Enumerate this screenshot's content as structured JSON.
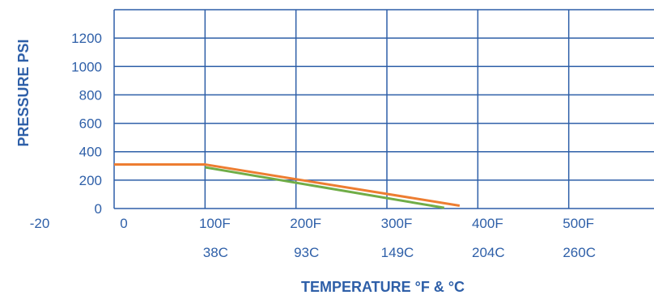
{
  "chart_data": {
    "type": "line",
    "title": "",
    "xlabel": "TEMPERATURE °F & °C",
    "ylabel": "PRESSURE PSI",
    "xlim": [
      -20,
      600
    ],
    "ylim": [
      0,
      1400
    ],
    "x_ticks_f": [
      {
        "value": -20,
        "label": "-20"
      },
      {
        "value": 0,
        "label": "0"
      },
      {
        "value": 100,
        "label": "100F"
      },
      {
        "value": 200,
        "label": "200F"
      },
      {
        "value": 300,
        "label": "300F"
      },
      {
        "value": 400,
        "label": "400F"
      },
      {
        "value": 500,
        "label": "500F"
      }
    ],
    "x_ticks_c": [
      {
        "value": 100,
        "label": "38C"
      },
      {
        "value": 200,
        "label": "93C"
      },
      {
        "value": 300,
        "label": "149C"
      },
      {
        "value": 400,
        "label": "204C"
      },
      {
        "value": 500,
        "label": "260C"
      }
    ],
    "y_ticks": [
      {
        "value": 0,
        "label": "0"
      },
      {
        "value": 200,
        "label": "200"
      },
      {
        "value": 400,
        "label": "400"
      },
      {
        "value": 600,
        "label": "600"
      },
      {
        "value": 800,
        "label": "800"
      },
      {
        "value": 1000,
        "label": "1000"
      },
      {
        "value": 1200,
        "label": "1200"
      }
    ],
    "x_gridlines": [
      0,
      100,
      200,
      300,
      400,
      500,
      600
    ],
    "y_gridlines": [
      0,
      200,
      400,
      600,
      800,
      1000,
      1200,
      1400
    ],
    "grid": true,
    "series": [
      {
        "color": "#ed7d31",
        "x": [
          -20,
          100,
          380
        ],
        "y": [
          310,
          310,
          20
        ]
      },
      {
        "color": "#70ad47",
        "x": [
          100,
          363
        ],
        "y": [
          290,
          5
        ]
      }
    ]
  }
}
